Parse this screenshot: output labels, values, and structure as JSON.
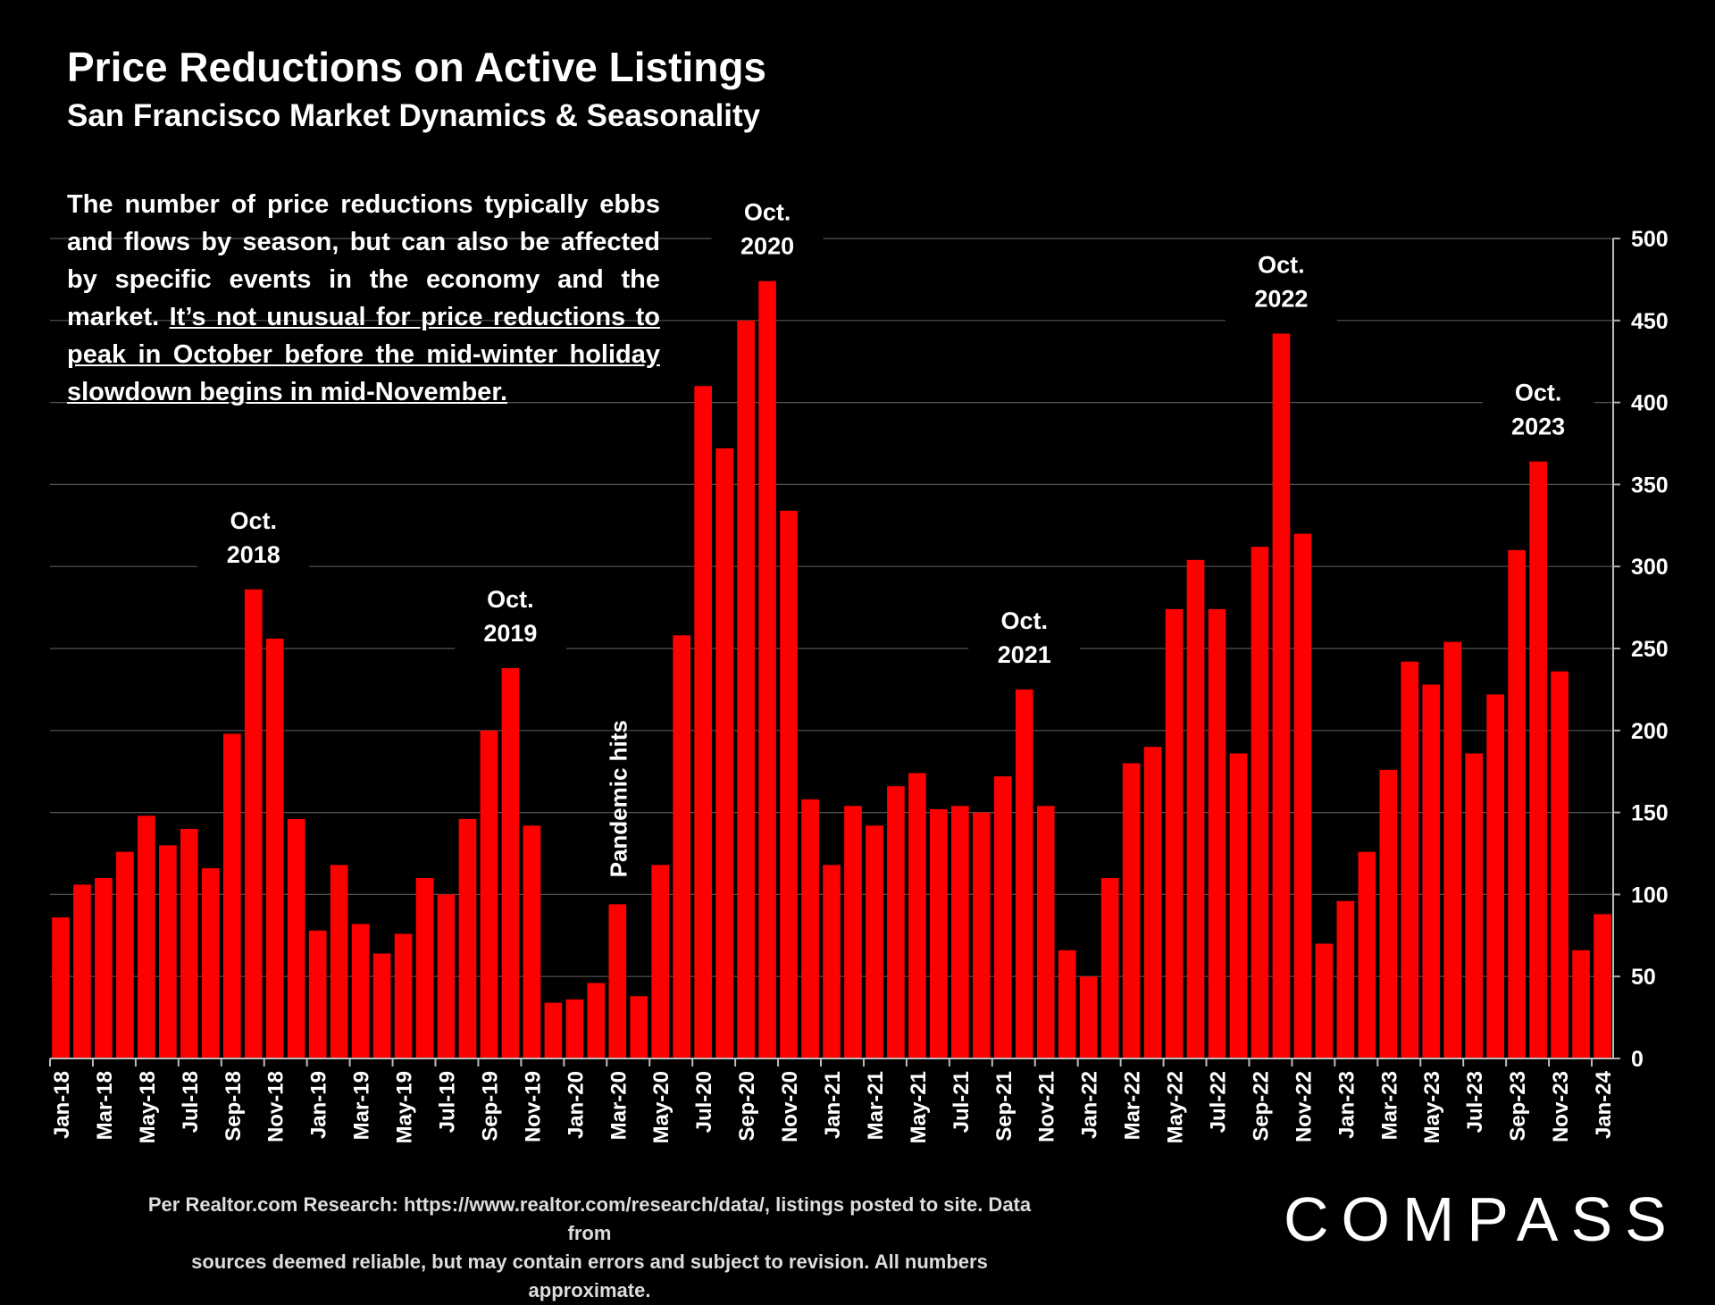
{
  "header": {
    "title": "Price Reductions on Active Listings",
    "subtitle": "San Francisco Market Dynamics & Seasonality"
  },
  "note": {
    "plain": "The number of price reductions typically ebbs and flows by season, but can also be affected by specific events in the economy and the market. ",
    "underlined": "It’s not unusual for price reductions to peak in October before the mid-winter holiday slowdown begins in mid-November."
  },
  "footer": {
    "line1": "Per Realtor.com Research:  https://www.realtor.com/research/data/, listings posted to site. Data from",
    "line2": "sources deemed reliable, but may contain errors and subject to revision. All numbers approximate."
  },
  "logo": {
    "text": "COMPASS"
  },
  "colors": {
    "bar": "#ff0000",
    "background": "#000000",
    "grid": "#555555",
    "text": "#ffffff"
  },
  "chart_data": {
    "type": "bar",
    "title": "Price Reductions on Active Listings",
    "subtitle": "San Francisco Market Dynamics & Seasonality",
    "ylim": [
      0,
      500
    ],
    "y_ticks": [
      0,
      50,
      100,
      150,
      200,
      250,
      300,
      350,
      400,
      450,
      500
    ],
    "y_axis_side": "right",
    "grid": true,
    "categories": [
      "Jan-18",
      "Feb-18",
      "Mar-18",
      "Apr-18",
      "May-18",
      "Jun-18",
      "Jul-18",
      "Aug-18",
      "Sep-18",
      "Oct-18",
      "Nov-18",
      "Dec-18",
      "Jan-19",
      "Feb-19",
      "Mar-19",
      "Apr-19",
      "May-19",
      "Jun-19",
      "Jul-19",
      "Aug-19",
      "Sep-19",
      "Oct-19",
      "Nov-19",
      "Dec-19",
      "Jan-20",
      "Feb-20",
      "Mar-20",
      "Apr-20",
      "May-20",
      "Jun-20",
      "Jul-20",
      "Aug-20",
      "Sep-20",
      "Oct-20",
      "Nov-20",
      "Dec-20",
      "Jan-21",
      "Feb-21",
      "Mar-21",
      "Apr-21",
      "May-21",
      "Jun-21",
      "Jul-21",
      "Aug-21",
      "Sep-21",
      "Oct-21",
      "Nov-21",
      "Dec-21",
      "Jan-22",
      "Feb-22",
      "Mar-22",
      "Apr-22",
      "May-22",
      "Jun-22",
      "Jul-22",
      "Aug-22",
      "Sep-22",
      "Oct-22",
      "Nov-22",
      "Dec-22",
      "Jan-23",
      "Feb-23",
      "Mar-23",
      "Apr-23",
      "May-23",
      "Jun-23",
      "Jul-23",
      "Aug-23",
      "Sep-23",
      "Oct-23",
      "Nov-23",
      "Dec-23",
      "Jan-24"
    ],
    "tick_labels": [
      "Jan-18",
      "Mar-18",
      "May-18",
      "Jul-18",
      "Sep-18",
      "Nov-18",
      "Jan-19",
      "Mar-19",
      "May-19",
      "Jul-19",
      "Sep-19",
      "Nov-19",
      "Jan-20",
      "Mar-20",
      "May-20",
      "Jul-20",
      "Sep-20",
      "Nov-20",
      "Jan-21",
      "Mar-21",
      "May-21",
      "Jul-21",
      "Sep-21",
      "Nov-21",
      "Jan-22",
      "Mar-22",
      "May-22",
      "Jul-22",
      "Sep-22",
      "Nov-22",
      "Jan-23",
      "Mar-23",
      "May-23",
      "Jul-23",
      "Sep-23",
      "Nov-23",
      "Jan-24"
    ],
    "values": [
      86,
      106,
      110,
      126,
      148,
      130,
      140,
      116,
      198,
      286,
      256,
      146,
      78,
      118,
      82,
      64,
      76,
      110,
      100,
      146,
      200,
      238,
      142,
      34,
      36,
      46,
      94,
      38,
      118,
      258,
      410,
      372,
      450,
      474,
      334,
      158,
      118,
      154,
      142,
      166,
      174,
      152,
      154,
      150,
      172,
      225,
      154,
      66,
      50,
      110,
      180,
      190,
      274,
      304,
      274,
      186,
      312,
      442,
      320,
      70,
      96,
      126,
      176,
      242,
      228,
      254,
      186,
      222,
      310,
      364,
      236,
      66,
      88
    ],
    "annotations": [
      {
        "text": "Oct.\n2018",
        "category": "Oct-18"
      },
      {
        "text": "Oct.\n2019",
        "category": "Oct-19"
      },
      {
        "text": "Oct.\n2020",
        "category": "Oct-20"
      },
      {
        "text": "Oct.\n2021",
        "category": "Oct-21"
      },
      {
        "text": "Oct.\n2022",
        "category": "Oct-22"
      },
      {
        "text": "Oct.\n2023",
        "category": "Oct-23"
      },
      {
        "text": "Pandemic hits",
        "category": "Mar-20",
        "rotated": true
      }
    ]
  }
}
